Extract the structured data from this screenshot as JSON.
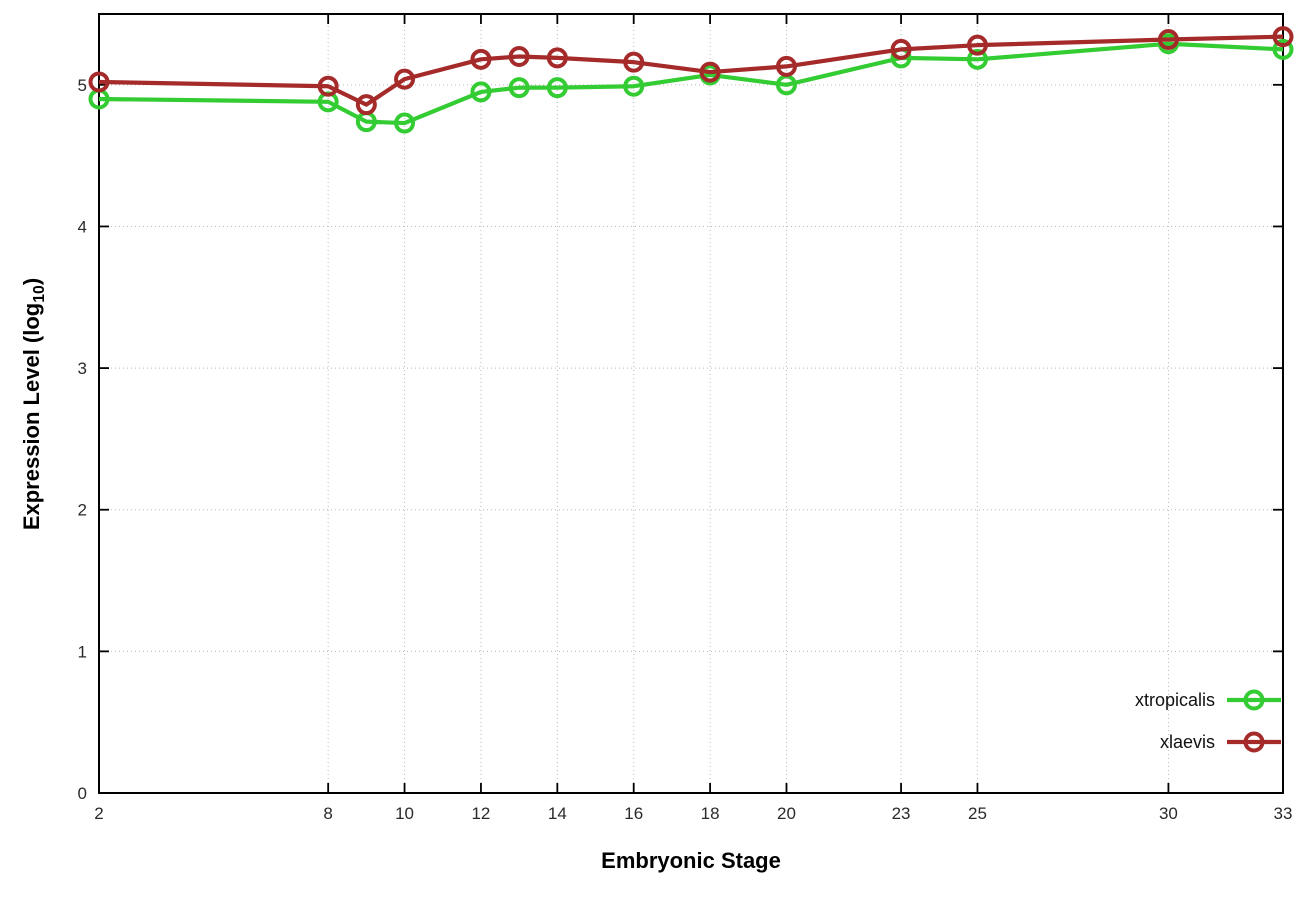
{
  "chart_data": {
    "type": "line",
    "title": "",
    "xlabel": "Embryonic Stage",
    "ylabel": {
      "prefix": "Expression Level (log",
      "sub": "10",
      "suffix": ")"
    },
    "xlim": [
      2,
      33
    ],
    "ylim": [
      0,
      5.5
    ],
    "x_ticks": [
      2,
      8,
      10,
      12,
      14,
      16,
      18,
      20,
      23,
      25,
      30,
      33
    ],
    "y_ticks": [
      0,
      1,
      2,
      3,
      4,
      5
    ],
    "grid": true,
    "legend_position": "inside-right-bottom",
    "x": [
      2,
      8,
      9,
      10,
      12,
      13,
      14,
      16,
      18,
      20,
      23,
      25,
      30,
      33
    ],
    "series": [
      {
        "name": "xtropicalis",
        "color": "#33cc33",
        "values": [
          4.9,
          4.88,
          4.74,
          4.73,
          4.95,
          4.98,
          4.98,
          4.99,
          5.07,
          5.0,
          5.19,
          5.18,
          5.29,
          5.25
        ]
      },
      {
        "name": "xlaevis",
        "color": "#a52a2a",
        "values": [
          5.02,
          4.99,
          4.86,
          5.04,
          5.18,
          5.2,
          5.19,
          5.16,
          5.09,
          5.13,
          5.25,
          5.28,
          5.32,
          5.34
        ]
      }
    ]
  }
}
